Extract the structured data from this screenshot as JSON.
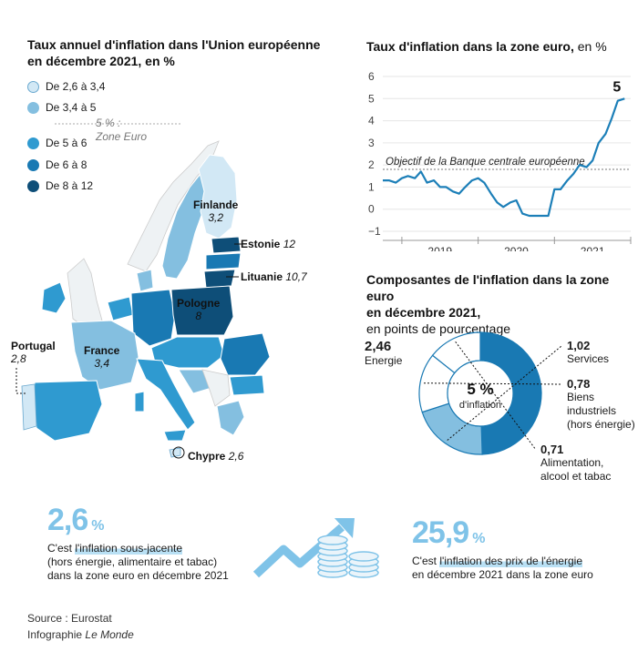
{
  "map": {
    "title": "Taux annuel d'inflation dans l'Union européenne",
    "title_line2": "en décembre 2021, en %",
    "legend": [
      {
        "label": "De 2,6 à 3,4",
        "color": "#d2e8f5"
      },
      {
        "label": "De 3,4 à 5",
        "color": "#84bfe0"
      },
      {
        "label": "De 5 à 6",
        "color": "#2f9ad0"
      },
      {
        "label": "De 6 à 8",
        "color": "#1979b3"
      },
      {
        "label": "De 8 à 12",
        "color": "#0e4e78"
      }
    ],
    "eurozone_note_1": "5 % :",
    "eurozone_note_2": "Zone Euro",
    "labels": {
      "finlande_name": "Finlande",
      "finlande_val": "3,2",
      "estonie_name": "Estonie",
      "estonie_val": "12",
      "lituanie_name": "Lituanie",
      "lituanie_val": "10,7",
      "pologne_name": "Pologne",
      "pologne_val": "8",
      "france_name": "France",
      "france_val": "3,4",
      "portugal_name": "Portugal",
      "portugal_val": "2,8",
      "chypre_name": "Chypre",
      "chypre_val": "2,6"
    }
  },
  "chart_data": [
    {
      "type": "line",
      "title": "Taux d'inflation dans la zone euro,",
      "title_unit": "en %",
      "x_tick_labels": [
        "2019",
        "2020",
        "2021"
      ],
      "ylim": [
        -1,
        6
      ],
      "y_ticks": [
        "−1",
        "0",
        "1",
        "2",
        "3",
        "4",
        "5",
        "6"
      ],
      "reference_line": {
        "value": 1.8,
        "label": "Objectif de la Banque centrale européenne"
      },
      "last_value_label": "5",
      "series": [
        {
          "name": "Inflation zone euro",
          "x": [
            2018.75,
            2018.83,
            2018.92,
            2019.0,
            2019.08,
            2019.17,
            2019.25,
            2019.33,
            2019.42,
            2019.5,
            2019.58,
            2019.67,
            2019.75,
            2019.83,
            2019.92,
            2020.0,
            2020.08,
            2020.17,
            2020.25,
            2020.33,
            2020.42,
            2020.5,
            2020.58,
            2020.67,
            2020.75,
            2020.83,
            2020.92,
            2021.0,
            2021.08,
            2021.17,
            2021.25,
            2021.33,
            2021.42,
            2021.5,
            2021.58,
            2021.67,
            2021.75,
            2021.83,
            2021.92
          ],
          "values": [
            1.3,
            1.3,
            1.2,
            1.4,
            1.5,
            1.4,
            1.7,
            1.2,
            1.3,
            1.0,
            1.0,
            0.8,
            0.7,
            1.0,
            1.3,
            1.4,
            1.2,
            0.7,
            0.3,
            0.1,
            0.3,
            0.4,
            -0.2,
            -0.3,
            -0.3,
            -0.3,
            -0.3,
            0.9,
            0.9,
            1.3,
            1.6,
            2.0,
            1.9,
            2.2,
            3.0,
            3.4,
            4.1,
            4.9,
            5.0
          ]
        }
      ]
    },
    {
      "type": "pie",
      "title": "Composantes de l'inflation dans la zone euro",
      "title_line2": "en décembre 2021,",
      "subtitle": "en points de pourcentage",
      "center_value": "5 %",
      "center_label": "d'inflation",
      "slices": [
        {
          "name": "Energie",
          "value": 2.46,
          "label": "2,46",
          "color": "#1979b3"
        },
        {
          "name": "Services",
          "value": 1.02,
          "label": "1,02",
          "color": "#84bfe0"
        },
        {
          "name": "Biens industriels (hors énergie)",
          "value": 0.78,
          "label": "0,78",
          "color": "#ffffff"
        },
        {
          "name": "Alimentation, alcool et tabac",
          "value": 0.71,
          "label": "0,71",
          "color": "#ffffff"
        }
      ],
      "slice_text": {
        "energie": "Energie",
        "services": "Services",
        "biens_1": "Biens",
        "biens_2": "industriels",
        "biens_3": "(hors énergie)",
        "alim_1": "Alimentation,",
        "alim_2": "alcool et tabac"
      }
    }
  ],
  "stats": {
    "left": {
      "value": "2,6",
      "unit": "%",
      "line1_pre": "C'est ",
      "line1_hl": "l'inflation sous-jacente",
      "line2": "(hors énergie, alimentaire et tabac)",
      "line3": "dans la zone euro en décembre 2021"
    },
    "right": {
      "value": "25,9",
      "unit": "%",
      "line1_pre": "C'est ",
      "line1_hl": "l'inflation des prix de l'énergie",
      "line2": "en décembre 2021 dans la zone euro"
    }
  },
  "footer": {
    "source": "Source : Eurostat",
    "credit_pre": "Infographie ",
    "credit_pub": "Le Monde"
  }
}
